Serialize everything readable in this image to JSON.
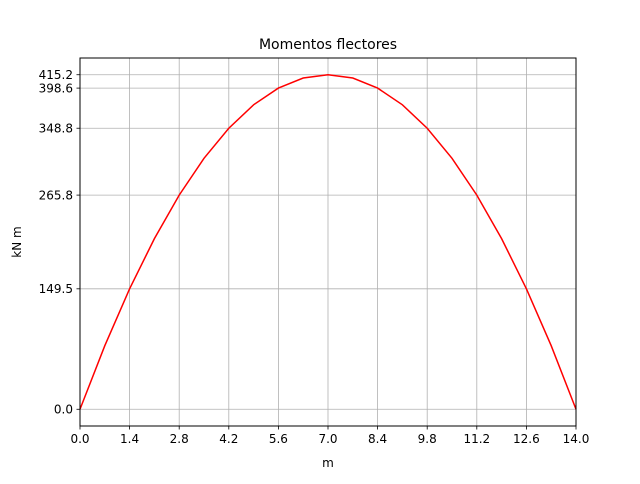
{
  "chart_data": {
    "type": "line",
    "title": "Momentos flectores",
    "xlabel": "m",
    "ylabel": "kN m",
    "xlim": [
      0.0,
      14.0
    ],
    "ylim": [
      -20.76,
      435.96
    ],
    "grid": true,
    "xticks": [
      0.0,
      1.4,
      2.8,
      4.2,
      5.6,
      7.0,
      8.4,
      9.8,
      11.2,
      12.6,
      14.0
    ],
    "xtick_labels": [
      "0.0",
      "1.4",
      "2.8",
      "4.2",
      "5.6",
      "7.0",
      "8.4",
      "9.8",
      "11.2",
      "12.6",
      "14.0"
    ],
    "yticks": [
      0.0,
      149.5,
      265.8,
      348.8,
      398.6,
      415.2
    ],
    "ytick_labels": [
      "0.0",
      "149.5",
      "265.8",
      "348.8",
      "398.6",
      "415.2"
    ],
    "series": [
      {
        "color": "#ff0000",
        "x": [
          0.0,
          0.7,
          1.4,
          2.1,
          2.8,
          3.5,
          4.2,
          4.9,
          5.6,
          6.3,
          7.0,
          7.7,
          8.4,
          9.1,
          9.8,
          10.5,
          11.2,
          11.9,
          12.6,
          13.3,
          14.0
        ],
        "y": [
          0.0,
          78.9,
          149.5,
          211.8,
          265.8,
          311.5,
          348.8,
          377.9,
          398.6,
          411.1,
          415.2,
          411.1,
          398.6,
          377.9,
          348.8,
          311.5,
          265.8,
          211.8,
          149.5,
          78.9,
          0.0
        ]
      }
    ]
  }
}
